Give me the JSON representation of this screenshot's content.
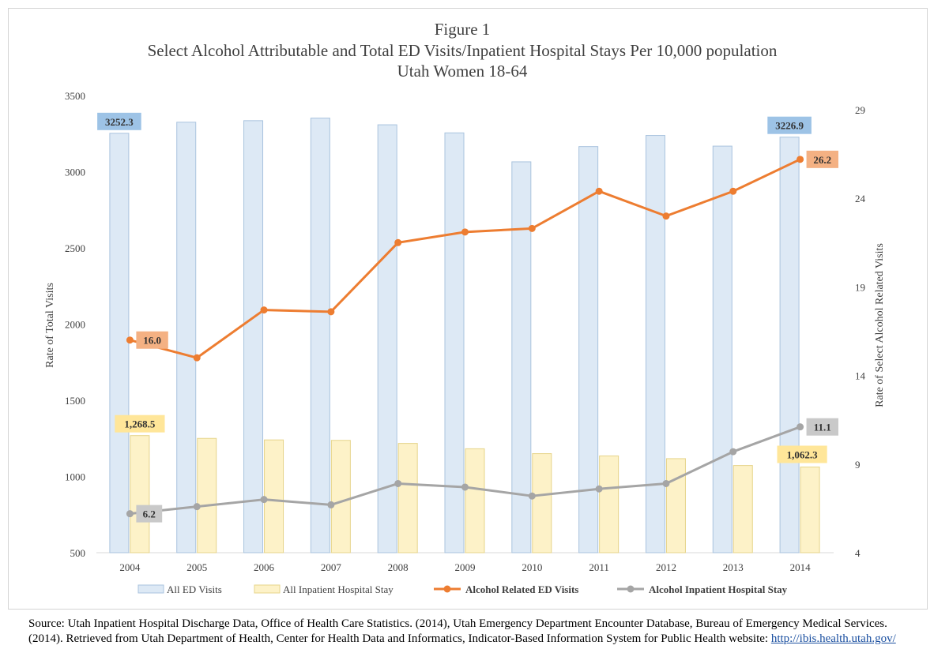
{
  "chart_data": {
    "type": "bar",
    "title_lines": [
      "Figure 1",
      "Select Alcohol Attributable and Total ED Visits/Inpatient Hospital Stays Per 10,000 population",
      "Utah Women 18-64"
    ],
    "categories": [
      "2004",
      "2005",
      "2006",
      "2007",
      "2008",
      "2009",
      "2010",
      "2011",
      "2012",
      "2013",
      "2014"
    ],
    "ylabel": "Rate of Total Visits",
    "ylabel_right": "Rate of Select Alcohol Related Visits",
    "ylim": [
      500,
      3500
    ],
    "yticks": [
      "500",
      "1000",
      "1500",
      "2000",
      "2500",
      "3000",
      "3500"
    ],
    "ylim_right": [
      4,
      29
    ],
    "yticks_right": [
      "4",
      "9",
      "14",
      "19",
      "24",
      "29"
    ],
    "legend_position": "bottom",
    "series": [
      {
        "name": "All ED Visits",
        "kind": "bar",
        "axis": "left",
        "color": "#dde9f5",
        "stroke": "#a9c3de",
        "values": [
          3252.3,
          3325,
          3335,
          3352,
          3308,
          3255,
          3065,
          3165,
          3238,
          3168,
          3226.9
        ]
      },
      {
        "name": "All Inpatient Hospital Stay",
        "kind": "bar",
        "axis": "left",
        "color": "#fdf2c8",
        "stroke": "#e6d48a",
        "values": [
          1268.5,
          1250,
          1240,
          1237,
          1217,
          1182,
          1150,
          1135,
          1117,
          1072,
          1062.3
        ]
      },
      {
        "name": "Alcohol Related ED Visits",
        "kind": "line",
        "axis": "right",
        "color": "#ed7d31",
        "values": [
          16.0,
          15.0,
          17.7,
          17.6,
          21.5,
          22.1,
          22.3,
          24.4,
          23.0,
          24.4,
          26.2
        ]
      },
      {
        "name": "Alcohol Inpatient Hospital Stay",
        "kind": "line",
        "axis": "right",
        "color": "#a5a5a5",
        "values": [
          6.2,
          6.6,
          7.0,
          6.7,
          7.9,
          7.7,
          7.2,
          7.6,
          7.9,
          9.7,
          11.1
        ]
      }
    ],
    "data_labels": [
      {
        "series": 0,
        "index": 0,
        "text": "3252.3",
        "bg": "#9dc3e6"
      },
      {
        "series": 0,
        "index": 10,
        "text": "3226.9",
        "bg": "#9dc3e6"
      },
      {
        "series": 1,
        "index": 0,
        "text": "1,268.5",
        "bg": "#ffe699"
      },
      {
        "series": 1,
        "index": 10,
        "text": "1,062.3",
        "bg": "#ffe699"
      },
      {
        "series": 2,
        "index": 0,
        "text": "16.0",
        "bg": "#f4b183"
      },
      {
        "series": 2,
        "index": 10,
        "text": "26.2",
        "bg": "#f4b183"
      },
      {
        "series": 3,
        "index": 0,
        "text": "6.2",
        "bg": "#c9c9c9"
      },
      {
        "series": 3,
        "index": 10,
        "text": "11.1",
        "bg": "#c9c9c9"
      }
    ]
  },
  "source": {
    "text": "Source: Utah Inpatient Hospital Discharge Data, Office of Health Care Statistics. (2014), Utah Emergency Department Encounter Database, Bureau of Emergency Medical Services. (2014). Retrieved from Utah Department of Health, Center for Health Data and Informatics, Indicator-Based Information System for Public Health website: ",
    "link": "http://ibis.health.utah.gov/"
  }
}
